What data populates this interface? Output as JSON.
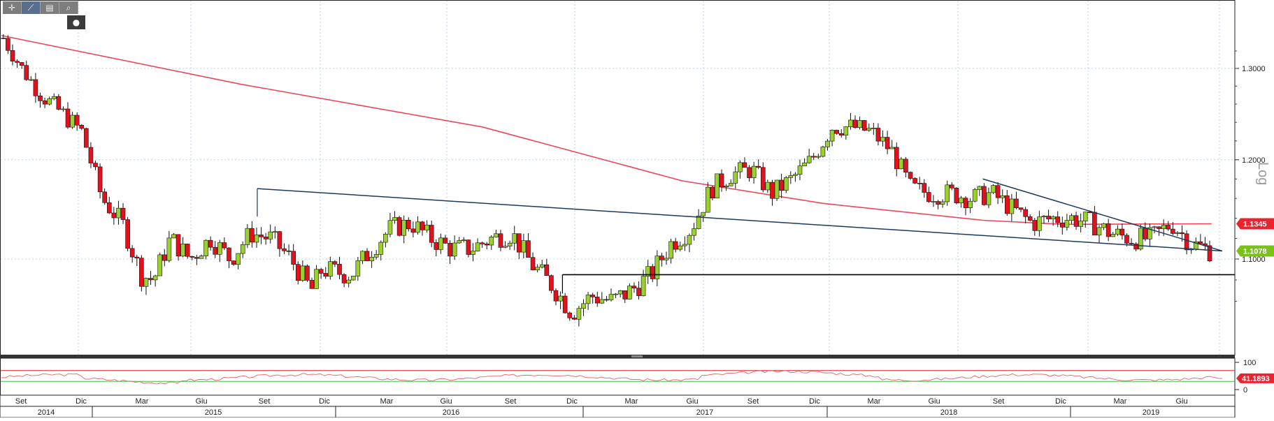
{
  "toolbar": {
    "icons": [
      "crosshair-icon",
      "draw-line-icon",
      "note-icon",
      "zoom-icon"
    ],
    "glyphs": [
      "✛",
      "⟋",
      "▤",
      "⌕"
    ],
    "sub_glyph": "●"
  },
  "price_axis": {
    "ticks": [
      "1.3000",
      "1.2000",
      "1.1000"
    ],
    "scale_label": "Log"
  },
  "osc_axis": {
    "ticks": [
      "100",
      "0"
    ]
  },
  "badges": {
    "ma": "1.1345",
    "last": "1.1078",
    "osc": "41.1893"
  },
  "time_axis": {
    "months": [
      "Set",
      "Dic",
      "Mar",
      "Giu",
      "Set",
      "Dic",
      "Mar",
      "Giu",
      "Set",
      "Dic",
      "Mar",
      "Giu",
      "Set",
      "Dic",
      "Mar",
      "Giu",
      "Set",
      "Dic",
      "Mar",
      "Giu"
    ],
    "years": [
      "2014",
      "2015",
      "2016",
      "2017",
      "2018",
      "2019"
    ]
  },
  "colors": {
    "up": "#9bd12e",
    "down": "#e4101c",
    "ma": "#f0465a",
    "trend": "#1b3a5c",
    "support": "#000000",
    "osc_line": "#e86070",
    "osc_upper": "#e02020",
    "osc_lower": "#2ecc40",
    "grid": "#b8d4ee"
  },
  "chart_data": {
    "type": "candlestick",
    "scale": "log",
    "ylim": [
      1.03,
      1.345
    ],
    "xlim": [
      "2014-08-01",
      "2019-09-15"
    ],
    "series": [
      {
        "name": "close",
        "x": [
          "2014-08-04",
          "2014-09-01",
          "2014-10-01",
          "2014-11-01",
          "2014-12-01",
          "2015-01-01",
          "2015-02-01",
          "2015-03-01",
          "2015-03-20",
          "2015-04-15",
          "2015-05-15",
          "2015-06-15",
          "2015-07-15",
          "2015-08-15",
          "2015-09-15",
          "2015-10-15",
          "2015-11-15",
          "2015-12-01",
          "2016-01-15",
          "2016-02-15",
          "2016-03-15",
          "2016-04-15",
          "2016-05-15",
          "2016-06-15",
          "2016-07-15",
          "2016-08-15",
          "2016-09-15",
          "2016-10-15",
          "2016-11-15",
          "2016-12-15",
          "2017-01-15",
          "2017-02-15",
          "2017-03-15",
          "2017-04-15",
          "2017-05-15",
          "2017-06-15",
          "2017-07-15",
          "2017-08-15",
          "2017-09-15",
          "2017-10-15",
          "2017-11-15",
          "2017-12-15",
          "2018-01-15",
          "2018-02-15",
          "2018-03-15",
          "2018-04-15",
          "2018-05-15",
          "2018-06-15",
          "2018-07-15",
          "2018-08-15",
          "2018-09-15",
          "2018-10-15",
          "2018-11-15",
          "2018-12-15",
          "2019-01-15",
          "2019-02-15",
          "2019-03-15",
          "2019-04-15",
          "2019-05-15",
          "2019-06-15",
          "2019-07-15",
          "2019-08-15"
        ],
        "values": [
          1.335,
          1.3,
          1.27,
          1.25,
          1.23,
          1.16,
          1.135,
          1.085,
          1.08,
          1.12,
          1.1,
          1.12,
          1.1,
          1.125,
          1.12,
          1.1,
          1.07,
          1.09,
          1.085,
          1.11,
          1.13,
          1.135,
          1.12,
          1.11,
          1.11,
          1.12,
          1.125,
          1.095,
          1.075,
          1.05,
          1.065,
          1.06,
          1.07,
          1.085,
          1.115,
          1.13,
          1.17,
          1.185,
          1.19,
          1.165,
          1.18,
          1.2,
          1.235,
          1.235,
          1.23,
          1.21,
          1.17,
          1.165,
          1.165,
          1.16,
          1.165,
          1.15,
          1.135,
          1.14,
          1.14,
          1.135,
          1.125,
          1.12,
          1.12,
          1.135,
          1.115,
          1.1078
        ]
      },
      {
        "name": "moving-average",
        "x": [
          "2014-08-01",
          "2015-08-01",
          "2016-08-01",
          "2017-06-01",
          "2018-01-01",
          "2018-09-01",
          "2019-01-01",
          "2019-08-15"
        ],
        "values": [
          1.338,
          1.282,
          1.235,
          1.178,
          1.155,
          1.138,
          1.134,
          1.1345
        ]
      }
    ],
    "lines": [
      {
        "name": "falling-resistance-long",
        "from": [
          "2015-08-25",
          1.17
        ],
        "to": [
          "2019-08-31",
          1.1078
        ]
      },
      {
        "name": "falling-resistance-short",
        "from": [
          "2018-09-01",
          1.18
        ],
        "to": [
          "2019-08-31",
          1.1078
        ]
      },
      {
        "name": "support",
        "value": 1.085,
        "from": "2016-12-01",
        "to": "2019-09-15"
      }
    ],
    "oscillator": {
      "range": [
        0,
        100
      ],
      "upper": 70,
      "lower": 30,
      "last": 41.1893
    }
  }
}
